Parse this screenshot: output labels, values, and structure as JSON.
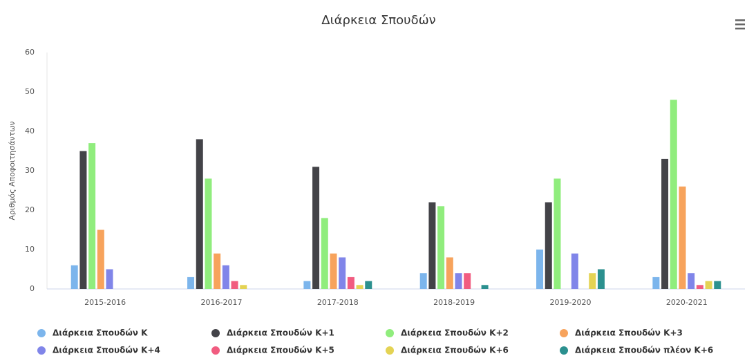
{
  "chart_data": {
    "type": "bar",
    "title": "Διάρκεια Σπουδών",
    "y_label": "Αριθμός Αποφοιτησάντων",
    "categories": [
      "2015-2016",
      "2016-2017",
      "2017-2018",
      "2018-2019",
      "2019-2020",
      "2020-2021"
    ],
    "series": [
      {
        "name": "Διάρκεια Σπουδών Κ",
        "color": "#7cb5ec",
        "values": [
          6,
          3,
          2,
          4,
          10,
          3
        ]
      },
      {
        "name": "Διάρκεια Σπουδών Κ+1",
        "color": "#434348",
        "values": [
          35,
          38,
          31,
          22,
          22,
          33
        ]
      },
      {
        "name": "Διάρκεια Σπουδών Κ+2",
        "color": "#90ed7d",
        "values": [
          37,
          28,
          18,
          21,
          28,
          48
        ]
      },
      {
        "name": "Διάρκεια Σπουδών Κ+3",
        "color": "#f7a35c",
        "values": [
          15,
          9,
          9,
          8,
          0,
          26
        ]
      },
      {
        "name": "Διάρκεια Σπουδών Κ+4",
        "color": "#8085e9",
        "values": [
          5,
          6,
          8,
          4,
          9,
          4
        ]
      },
      {
        "name": "Διάρκεια Σπουδών Κ+5",
        "color": "#f15c80",
        "values": [
          0,
          2,
          3,
          4,
          0,
          1
        ]
      },
      {
        "name": "Διάρκεια Σπουδών Κ+6",
        "color": "#e4d354",
        "values": [
          0,
          1,
          1,
          0,
          4,
          2
        ]
      },
      {
        "name": "Διάρκεια Σπουδών πλέον Κ+6",
        "color": "#2b908f",
        "values": [
          0,
          0,
          2,
          1,
          5,
          2
        ]
      }
    ],
    "ylim": [
      0,
      60
    ],
    "yticks": [
      0,
      10,
      20,
      30,
      40,
      50,
      60
    ],
    "grid": false,
    "legend": "bottom"
  }
}
